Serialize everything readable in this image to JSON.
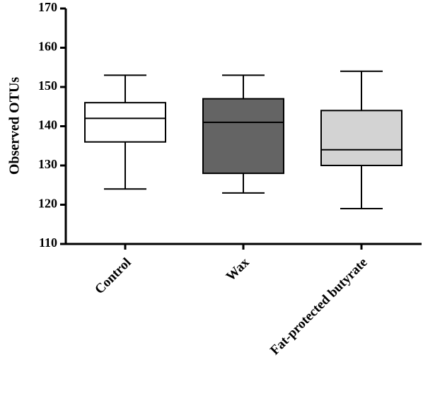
{
  "chart_data": {
    "type": "boxplot",
    "title": "",
    "xlabel": "",
    "ylabel": "Observed OTUs",
    "ylim": [
      110,
      170
    ],
    "yticks": [
      "110",
      "120",
      "130",
      "140",
      "150",
      "160",
      "170"
    ],
    "categories": [
      "Control",
      "Wax",
      "Fat-protected butyrate"
    ],
    "boxes": [
      {
        "category": "Control",
        "min": 124,
        "q1": 136,
        "median": 142,
        "q3": 146,
        "max": 153,
        "fill": "#ffffff"
      },
      {
        "category": "Wax",
        "min": 123,
        "q1": 128,
        "median": 141,
        "q3": 147,
        "max": 153,
        "fill": "#646464"
      },
      {
        "category": "Fat-protected butyrate",
        "min": 119,
        "q1": 130,
        "median": 134,
        "q3": 144,
        "max": 154,
        "fill": "#d3d3d3"
      }
    ],
    "grid": false,
    "legend": "none"
  }
}
